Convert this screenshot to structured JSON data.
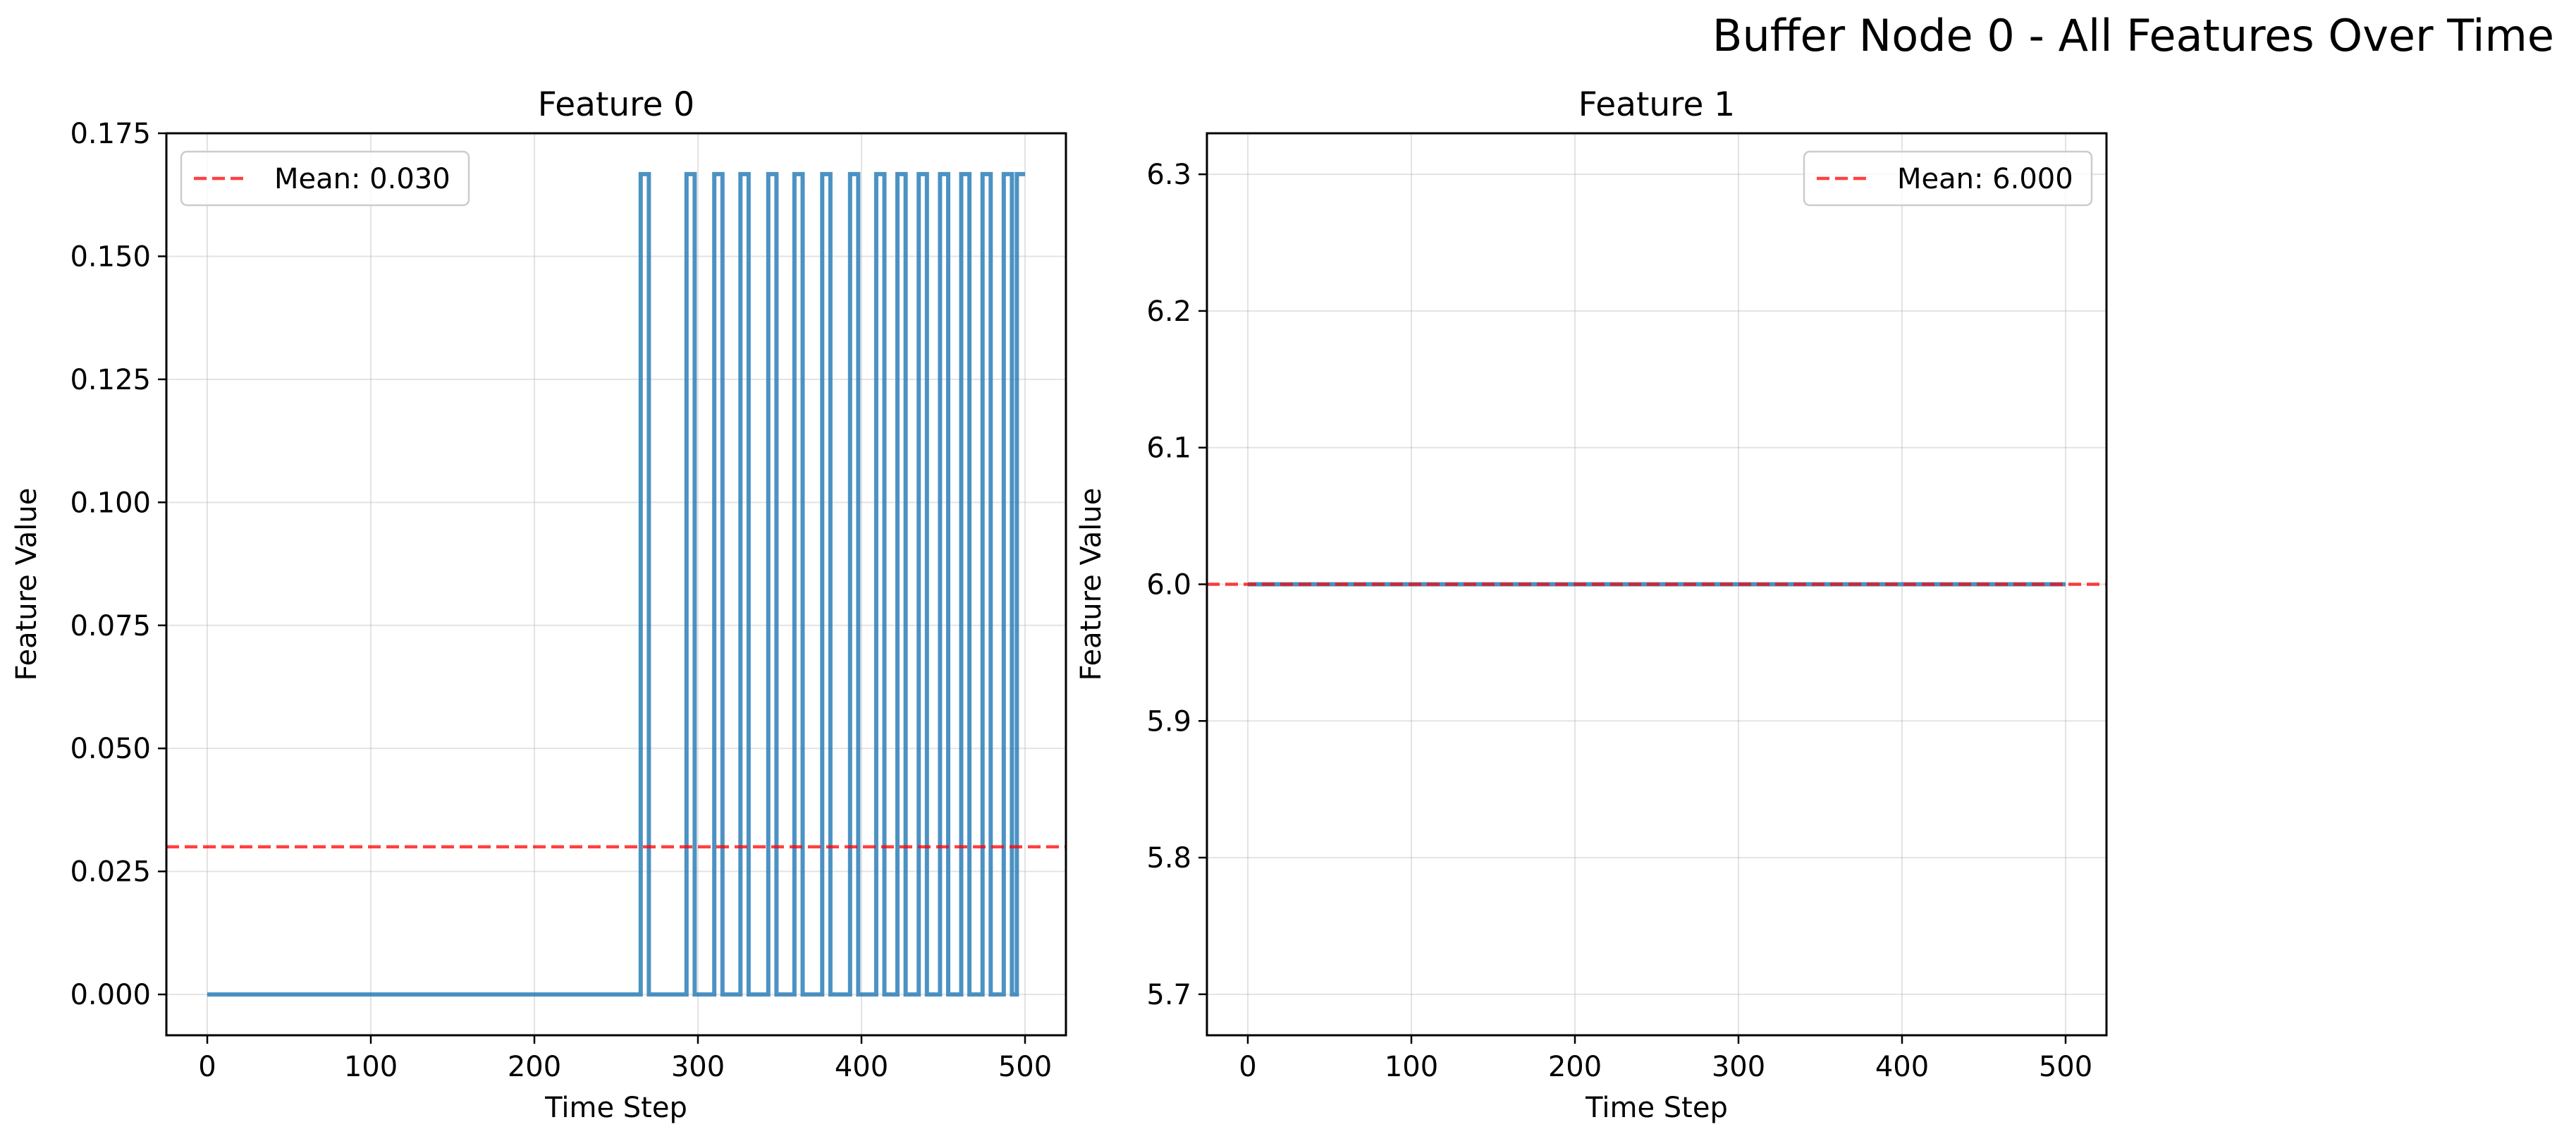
{
  "figure": {
    "suptitle": "Buffer Node 0 - All Features Over Time"
  },
  "chart_data": [
    {
      "type": "line",
      "title": "Feature 0",
      "xlabel": "Time Step",
      "ylabel": "Feature Value",
      "xlim": [
        -25,
        525
      ],
      "ylim": [
        -0.0083,
        0.175
      ],
      "xticks": [
        0,
        100,
        200,
        300,
        400,
        500
      ],
      "xtick_labels": [
        "0",
        "100",
        "200",
        "300",
        "400",
        "500"
      ],
      "yticks": [
        0.0,
        0.025,
        0.05,
        0.075,
        0.1,
        0.125,
        0.15,
        0.175
      ],
      "ytick_labels": [
        "0.000",
        "0.025",
        "0.050",
        "0.075",
        "0.100",
        "0.125",
        "0.150",
        "0.175"
      ],
      "grid": true,
      "legend_position": "upper left",
      "series": [
        {
          "kind": "step",
          "color": "#1f77b4",
          "x": [
            0,
            265,
            265,
            270,
            270,
            293,
            293,
            298,
            298,
            310,
            310,
            315,
            315,
            326,
            326,
            331,
            331,
            343,
            343,
            348,
            348,
            359,
            359,
            364,
            364,
            376,
            376,
            381,
            381,
            393,
            393,
            398,
            398,
            409,
            409,
            414,
            414,
            422,
            422,
            427,
            427,
            435,
            435,
            440,
            440,
            448,
            448,
            453,
            453,
            461,
            461,
            466,
            466,
            474,
            474,
            479,
            479,
            487,
            487,
            492,
            492,
            495,
            495,
            500
          ],
          "y": [
            0,
            0,
            0.1667,
            0.1667,
            0,
            0,
            0.1667,
            0.1667,
            0,
            0,
            0.1667,
            0.1667,
            0,
            0,
            0.1667,
            0.1667,
            0,
            0,
            0.1667,
            0.1667,
            0,
            0,
            0.1667,
            0.1667,
            0,
            0,
            0.1667,
            0.1667,
            0,
            0,
            0.1667,
            0.1667,
            0,
            0,
            0.1667,
            0.1667,
            0,
            0,
            0.1667,
            0.1667,
            0,
            0,
            0.1667,
            0.1667,
            0,
            0,
            0.1667,
            0.1667,
            0,
            0,
            0.1667,
            0.1667,
            0,
            0,
            0.1667,
            0.1667,
            0,
            0,
            0.1667,
            0.1667,
            0,
            0,
            0.1667,
            0.1667
          ]
        },
        {
          "name": "Mean: 0.030",
          "kind": "hline",
          "color": "#ff0000",
          "y": 0.03
        }
      ]
    },
    {
      "type": "line",
      "title": "Feature 1",
      "xlabel": "Time Step",
      "ylabel": "Feature Value",
      "xlim": [
        -25,
        525
      ],
      "ylim": [
        5.67,
        6.33
      ],
      "xticks": [
        0,
        100,
        200,
        300,
        400,
        500
      ],
      "xtick_labels": [
        "0",
        "100",
        "200",
        "300",
        "400",
        "500"
      ],
      "yticks": [
        5.7,
        5.8,
        5.9,
        6.0,
        6.1,
        6.2,
        6.3
      ],
      "ytick_labels": [
        "5.7",
        "5.8",
        "5.9",
        "6.0",
        "6.1",
        "6.2",
        "6.3"
      ],
      "grid": true,
      "legend_position": "upper right",
      "series": [
        {
          "kind": "step",
          "color": "#1f77b4",
          "x": [
            0,
            500
          ],
          "y": [
            6.0,
            6.0
          ]
        },
        {
          "name": "Mean: 6.000",
          "kind": "hline",
          "color": "#ff0000",
          "y": 6.0
        }
      ]
    }
  ]
}
